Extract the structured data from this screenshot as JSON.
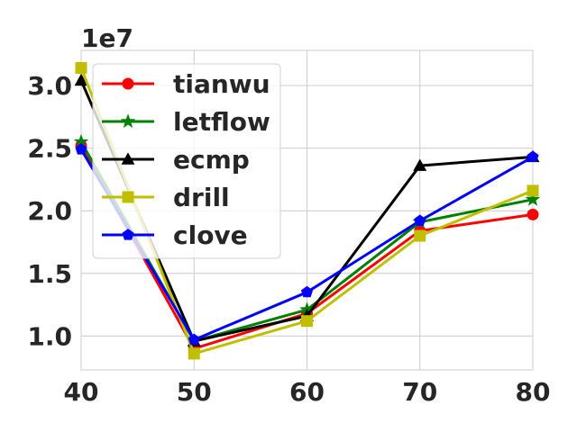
{
  "chart_data": {
    "type": "line",
    "x": [
      40,
      50,
      60,
      70,
      80
    ],
    "xlim": [
      40,
      80
    ],
    "ylim": [
      7300000,
      32800000
    ],
    "x_ticks": [
      "40",
      "50",
      "60",
      "70",
      "80"
    ],
    "y_ticks": [
      {
        "value": 10000000,
        "label": "1.0"
      },
      {
        "value": 15000000,
        "label": "1.5"
      },
      {
        "value": 20000000,
        "label": "2.0"
      },
      {
        "value": 25000000,
        "label": "2.5"
      },
      {
        "value": 30000000,
        "label": "3.0"
      }
    ],
    "y_offset_label": "1e7",
    "grid": true,
    "legend_position": "upper-left",
    "series": [
      {
        "name": "tianwu",
        "color": "#ff0000",
        "marker": "circle",
        "values": [
          25200000,
          9000000,
          11800000,
          18400000,
          19700000
        ]
      },
      {
        "name": "letflow",
        "color": "#008000",
        "marker": "star",
        "values": [
          25500000,
          9600000,
          12100000,
          19100000,
          20900000
        ]
      },
      {
        "name": "ecmp",
        "color": "#000000",
        "marker": "triangle",
        "values": [
          30400000,
          9600000,
          11600000,
          23600000,
          24300000
        ]
      },
      {
        "name": "drill",
        "color": "#bfbf00",
        "marker": "square",
        "values": [
          31400000,
          8600000,
          11200000,
          18000000,
          21600000
        ]
      },
      {
        "name": "clove",
        "color": "#0000ff",
        "marker": "pentagon",
        "values": [
          24900000,
          9700000,
          13500000,
          19200000,
          24300000
        ]
      }
    ]
  }
}
